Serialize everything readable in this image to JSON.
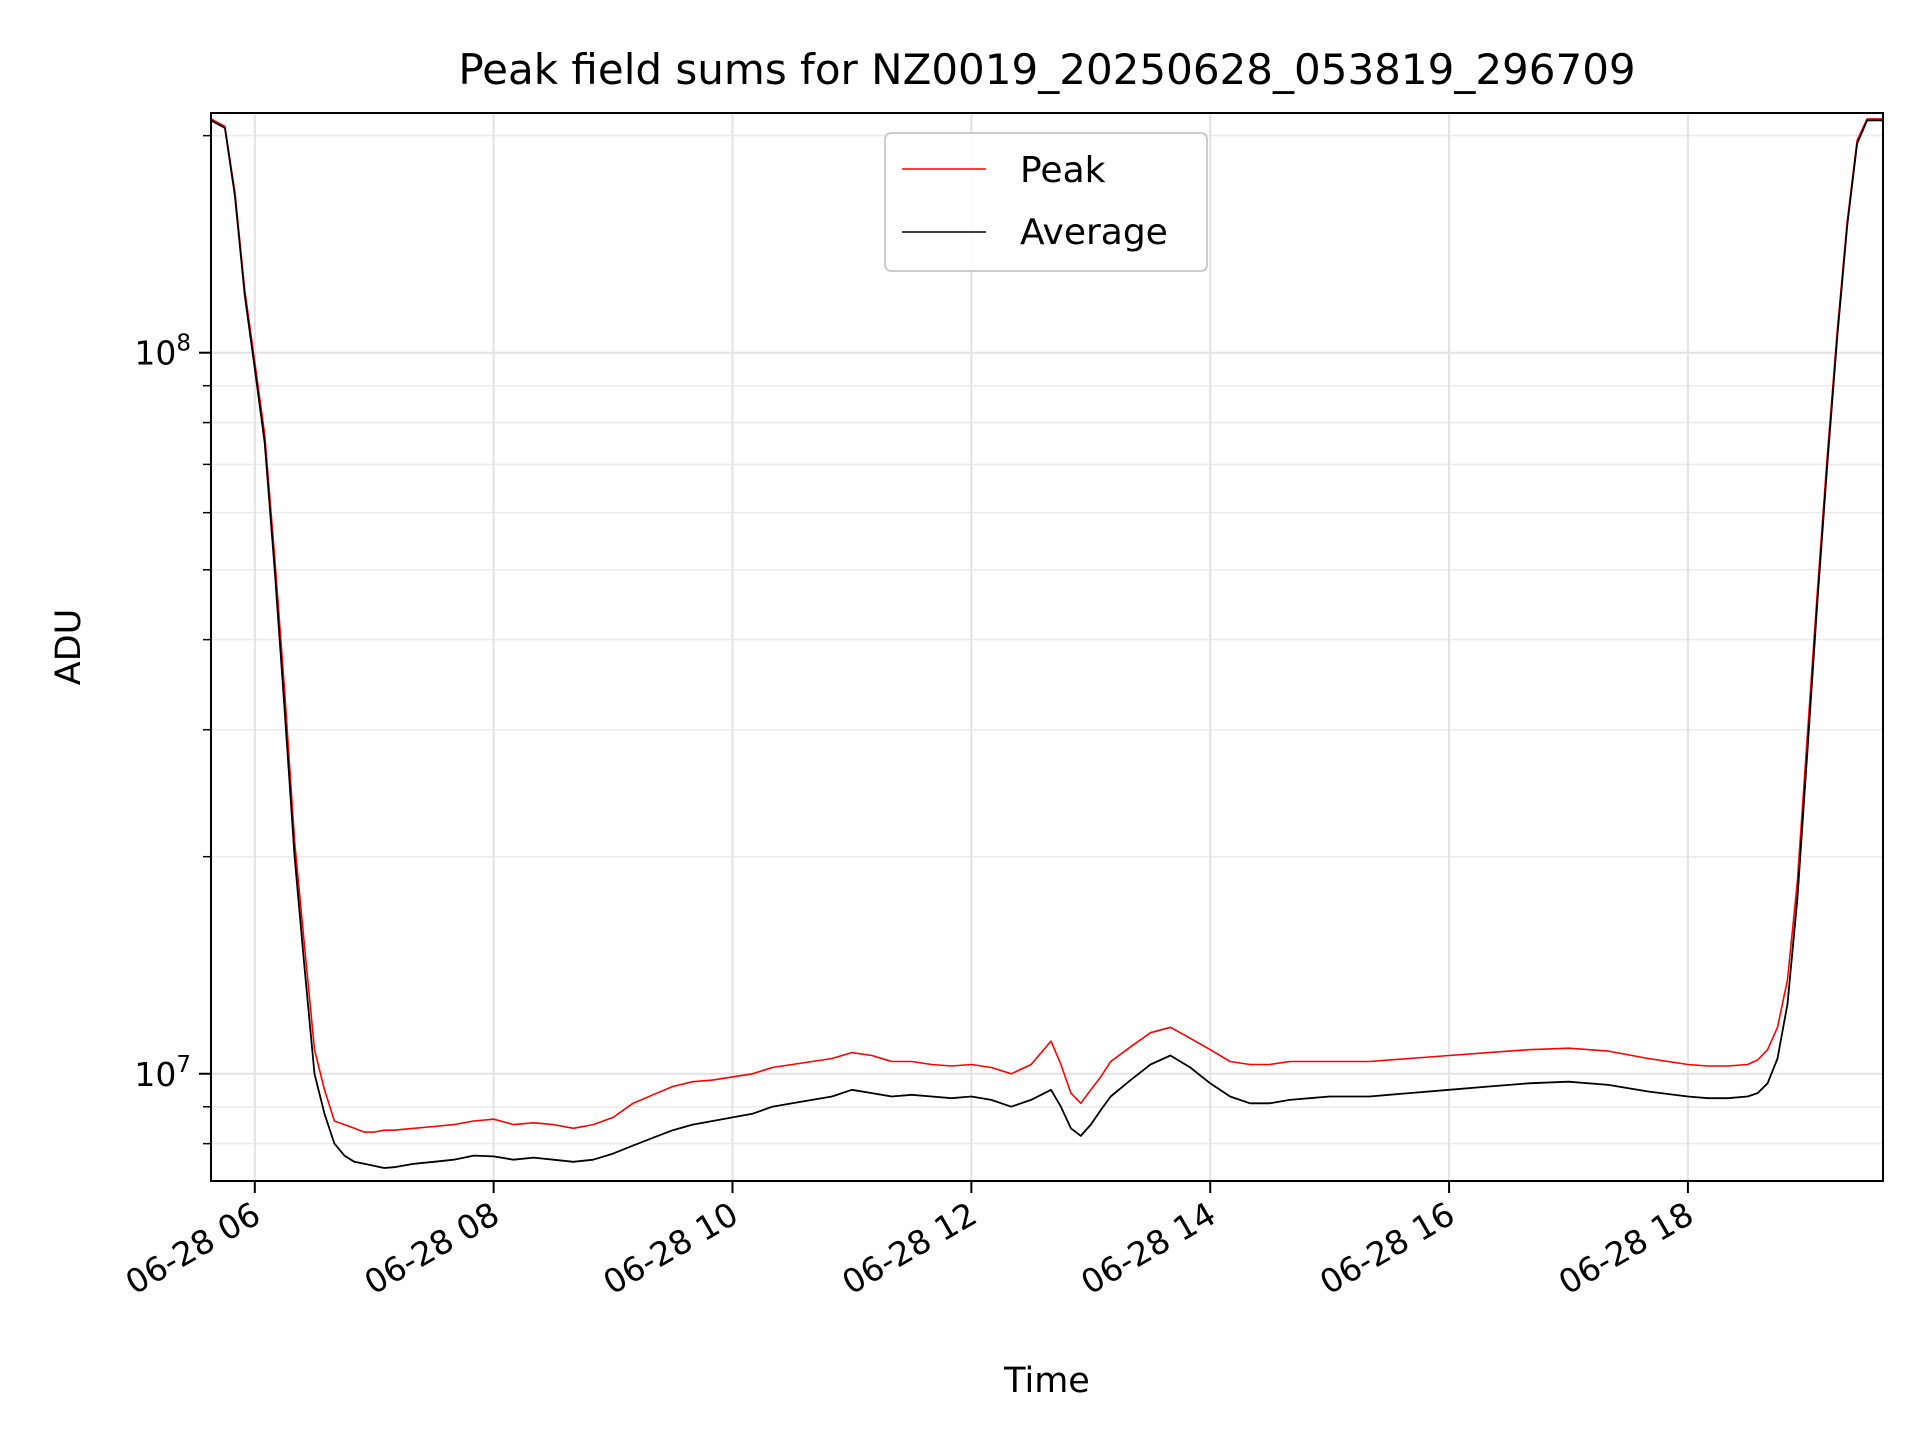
{
  "chart_data": {
    "type": "line",
    "title": "Peak field sums for NZ0019_20250628_053819_296709",
    "xlabel": "Time",
    "ylabel": "ADU",
    "y_scale": "log",
    "x_range": [
      "06-28 05:38",
      "06-28 19:38"
    ],
    "ylim": [
      7100000,
      215000000
    ],
    "grid": true,
    "legend": {
      "placement": "upper center",
      "entries": [
        {
          "name": "Peak",
          "color": "#ff0000"
        },
        {
          "name": "Average",
          "color": "#000000"
        }
      ]
    },
    "x_ticks": [
      "06-28 06",
      "06-28 08",
      "06-28 10",
      "06-28 12",
      "06-28 14",
      "06-28 16",
      "06-28 18"
    ],
    "y_ticks": [
      {
        "label_base": "10",
        "label_exp": "7",
        "value": 10000000
      },
      {
        "label_base": "10",
        "label_exp": "8",
        "value": 100000000
      }
    ],
    "series": [
      {
        "name": "Average",
        "color": "#000000",
        "x": [
          "05:38",
          "05:45",
          "05:50",
          "05:55",
          "06:00",
          "06:05",
          "06:10",
          "06:15",
          "06:20",
          "06:25",
          "06:30",
          "06:35",
          "06:40",
          "06:45",
          "06:50",
          "06:55",
          "07:00",
          "07:05",
          "07:10",
          "07:20",
          "07:30",
          "07:40",
          "07:50",
          "08:00",
          "08:10",
          "08:20",
          "08:30",
          "08:40",
          "08:50",
          "09:00",
          "09:10",
          "09:20",
          "09:30",
          "09:40",
          "09:50",
          "10:00",
          "10:10",
          "10:20",
          "10:30",
          "10:40",
          "10:50",
          "11:00",
          "11:10",
          "11:20",
          "11:30",
          "11:40",
          "11:50",
          "12:00",
          "12:10",
          "12:20",
          "12:30",
          "12:40",
          "12:45",
          "12:50",
          "12:55",
          "13:00",
          "13:05",
          "13:10",
          "13:20",
          "13:30",
          "13:40",
          "13:50",
          "14:00",
          "14:10",
          "14:20",
          "14:30",
          "14:40",
          "14:50",
          "15:00",
          "15:20",
          "15:40",
          "16:00",
          "16:20",
          "16:40",
          "17:00",
          "17:20",
          "17:40",
          "18:00",
          "18:10",
          "18:20",
          "18:30",
          "18:35",
          "18:40",
          "18:45",
          "18:50",
          "18:55",
          "19:00",
          "19:05",
          "19:10",
          "19:15",
          "19:20",
          "19:25",
          "19:30",
          "19:38"
        ],
        "y": [
          210000000,
          205000000,
          165000000,
          120000000,
          95000000,
          75000000,
          50000000,
          32000000,
          20000000,
          14000000,
          10000000,
          8800000,
          8000000,
          7700000,
          7550000,
          7500000,
          7450000,
          7400000,
          7420000,
          7500000,
          7550000,
          7600000,
          7700000,
          7680000,
          7600000,
          7650000,
          7600000,
          7550000,
          7600000,
          7750000,
          7950000,
          8150000,
          8350000,
          8500000,
          8600000,
          8700000,
          8800000,
          9000000,
          9100000,
          9200000,
          9300000,
          9500000,
          9400000,
          9300000,
          9350000,
          9300000,
          9250000,
          9300000,
          9200000,
          9000000,
          9200000,
          9500000,
          9000000,
          8400000,
          8200000,
          8500000,
          8900000,
          9300000,
          9800000,
          10300000,
          10600000,
          10200000,
          9700000,
          9300000,
          9100000,
          9100000,
          9200000,
          9250000,
          9300000,
          9300000,
          9400000,
          9500000,
          9600000,
          9700000,
          9750000,
          9650000,
          9450000,
          9300000,
          9250000,
          9250000,
          9300000,
          9400000,
          9700000,
          10500000,
          12500000,
          17500000,
          28000000,
          45000000,
          70000000,
          105000000,
          150000000,
          195000000,
          210000000,
          210000000
        ]
      },
      {
        "name": "Peak",
        "color": "#ff0000",
        "x": [
          "05:38",
          "05:45",
          "05:50",
          "05:55",
          "06:00",
          "06:05",
          "06:10",
          "06:15",
          "06:20",
          "06:25",
          "06:30",
          "06:35",
          "06:40",
          "06:45",
          "06:50",
          "06:55",
          "07:00",
          "07:05",
          "07:10",
          "07:20",
          "07:30",
          "07:40",
          "07:50",
          "08:00",
          "08:10",
          "08:20",
          "08:30",
          "08:40",
          "08:50",
          "09:00",
          "09:10",
          "09:20",
          "09:30",
          "09:40",
          "09:50",
          "10:00",
          "10:10",
          "10:20",
          "10:30",
          "10:40",
          "10:50",
          "11:00",
          "11:10",
          "11:20",
          "11:30",
          "11:40",
          "11:50",
          "12:00",
          "12:10",
          "12:20",
          "12:30",
          "12:40",
          "12:45",
          "12:50",
          "12:55",
          "13:00",
          "13:05",
          "13:10",
          "13:20",
          "13:30",
          "13:40",
          "13:50",
          "14:00",
          "14:10",
          "14:20",
          "14:30",
          "14:40",
          "14:50",
          "15:00",
          "15:20",
          "15:40",
          "16:00",
          "16:20",
          "16:40",
          "17:00",
          "17:20",
          "17:40",
          "18:00",
          "18:10",
          "18:20",
          "18:30",
          "18:35",
          "18:40",
          "18:45",
          "18:50",
          "18:55",
          "19:00",
          "19:05",
          "19:10",
          "19:15",
          "19:20",
          "19:25",
          "19:30",
          "19:38"
        ],
        "y": [
          211000000,
          206000000,
          167000000,
          122000000,
          97000000,
          77000000,
          52000000,
          34000000,
          21000000,
          15000000,
          10800000,
          9500000,
          8600000,
          8500000,
          8400000,
          8300000,
          8300000,
          8350000,
          8350000,
          8400000,
          8450000,
          8500000,
          8600000,
          8650000,
          8500000,
          8550000,
          8500000,
          8400000,
          8500000,
          8700000,
          9100000,
          9350000,
          9600000,
          9750000,
          9800000,
          9900000,
          10000000,
          10200000,
          10300000,
          10400000,
          10500000,
          10700000,
          10600000,
          10400000,
          10400000,
          10300000,
          10250000,
          10300000,
          10200000,
          10000000,
          10300000,
          11100000,
          10300000,
          9400000,
          9100000,
          9500000,
          9900000,
          10400000,
          10900000,
          11400000,
          11600000,
          11200000,
          10800000,
          10400000,
          10300000,
          10300000,
          10400000,
          10400000,
          10400000,
          10400000,
          10500000,
          10600000,
          10700000,
          10800000,
          10850000,
          10750000,
          10500000,
          10300000,
          10250000,
          10250000,
          10300000,
          10450000,
          10800000,
          11600000,
          13500000,
          18500000,
          29500000,
          46500000,
          72000000,
          107000000,
          152000000,
          197000000,
          211000000,
          211000000
        ]
      }
    ]
  }
}
